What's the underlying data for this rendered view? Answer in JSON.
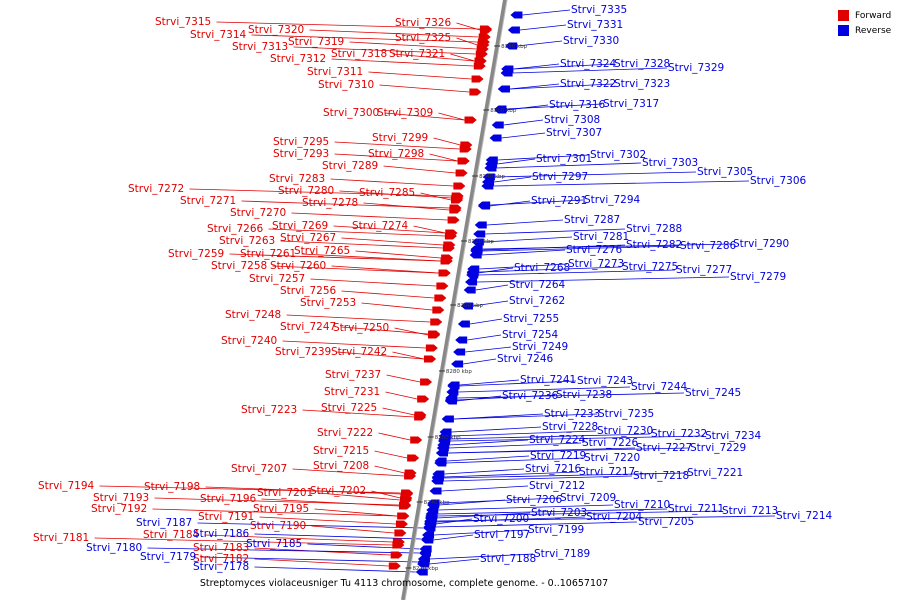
{
  "caption": "Streptomyces violaceusniger Tu 4113 chromosome, complete genome. - 0..10657107",
  "legend": [
    {
      "label": "Forward",
      "color": "#e00000"
    },
    {
      "label": "Reverse",
      "color": "#0000e0"
    }
  ],
  "colors": {
    "forward": "#e00000",
    "reverse": "#0000e0",
    "backbone": "#777777"
  },
  "axis": {
    "unit": "kbp"
  },
  "scale_ticks": [
    "8380 kbp",
    "8360 kbp",
    "8340 kbp",
    "8320 kbp",
    "8300 kbp",
    "8280 kbp",
    "8260 kbp",
    "8240 kbp",
    "8220 kbp"
  ],
  "forward_genes": [
    "Strvi_7326",
    "Strvi_7325",
    "Strvi_7315",
    "Strvi_7314",
    "Strvi_7320",
    "Strvi_7313",
    "Strvi_7319",
    "Strvi_7318",
    "Strvi_7321",
    "Strvi_7312",
    "Strvi_7311",
    "Strvi_7310",
    "Strvi_7300",
    "Strvi_7309",
    "Strvi_7299",
    "Strvi_7295",
    "Strvi_7293",
    "Strvi_7298",
    "Strvi_7289",
    "Strvi_7283",
    "Strvi_7280",
    "Strvi_7285",
    "Strvi_7272",
    "Strvi_7278",
    "Strvi_7271",
    "Strvi_7270",
    "Strvi_7274",
    "Strvi_7266",
    "Strvi_7269",
    "Strvi_7263",
    "Strvi_7267",
    "Strvi_7265",
    "Strvi_7259",
    "Strvi_7261",
    "Strvi_7258",
    "Strvi_7260",
    "Strvi_7257",
    "Strvi_7256",
    "Strvi_7253",
    "Strvi_7248",
    "Strvi_7247",
    "Strvi_7250",
    "Strvi_7240",
    "Strvi_7239",
    "Strvi_7242",
    "Strvi_7237",
    "Strvi_7231",
    "Strvi_7225",
    "Strvi_7223",
    "Strvi_7222",
    "Strvi_7215",
    "Strvi_7207",
    "Strvi_7208",
    "Strvi_7194",
    "Strvi_7198",
    "Strvi_7201",
    "Strvi_7202",
    "Strvi_7193",
    "Strvi_7196",
    "Strvi_7195",
    "Strvi_7192",
    "Strvi_7191",
    "Strvi_7190",
    "Strvi_7181",
    "Strvi_7184",
    "Strvi_7183",
    "Strvi_7182"
  ],
  "reverse_genes": [
    "Strvi_7335",
    "Strvi_7331",
    "Strvi_7330",
    "Strvi_7324",
    "Strvi_7328",
    "Strvi_7329",
    "Strvi_7322",
    "Strvi_7323",
    "Strvi_7316",
    "Strvi_7317",
    "Strvi_7308",
    "Strvi_7307",
    "Strvi_7301",
    "Strvi_7302",
    "Strvi_7303",
    "Strvi_7305",
    "Strvi_7306",
    "Strvi_7297",
    "Strvi_7291",
    "Strvi_7294",
    "Strvi_7287",
    "Strvi_7288",
    "Strvi_7281",
    "Strvi_7282",
    "Strvi_7286",
    "Strvi_7290",
    "Strvi_7276",
    "Strvi_7268",
    "Strvi_7273",
    "Strvi_7275",
    "Strvi_7277",
    "Strvi_7279",
    "Strvi_7264",
    "Strvi_7262",
    "Strvi_7255",
    "Strvi_7254",
    "Strvi_7249",
    "Strvi_7246",
    "Strvi_7241",
    "Strvi_7243",
    "Strvi_7244",
    "Strvi_7245",
    "Strvi_7236",
    "Strvi_7238",
    "Strvi_7233",
    "Strvi_7235",
    "Strvi_7228",
    "Strvi_7230",
    "Strvi_7232",
    "Strvi_7234",
    "Strvi_7224",
    "Strvi_7226",
    "Strvi_7227",
    "Strvi_7229",
    "Strvi_7219",
    "Strvi_7220",
    "Strvi_7216",
    "Strvi_7217",
    "Strvi_7218",
    "Strvi_7221",
    "Strvi_7212",
    "Strvi_7206",
    "Strvi_7209",
    "Strvi_7210",
    "Strvi_7211",
    "Strvi_7213",
    "Strvi_7214",
    "Strvi_7203",
    "Strvi_7204",
    "Strvi_7205",
    "Strvi_7200",
    "Strvi_7197",
    "Strvi_7199",
    "Strvi_7187",
    "Strvi_7186",
    "Strvi_7185",
    "Strvi_7180",
    "Strvi_7179",
    "Strvi_7178",
    "Strvi_7189",
    "Strvi_7188"
  ]
}
